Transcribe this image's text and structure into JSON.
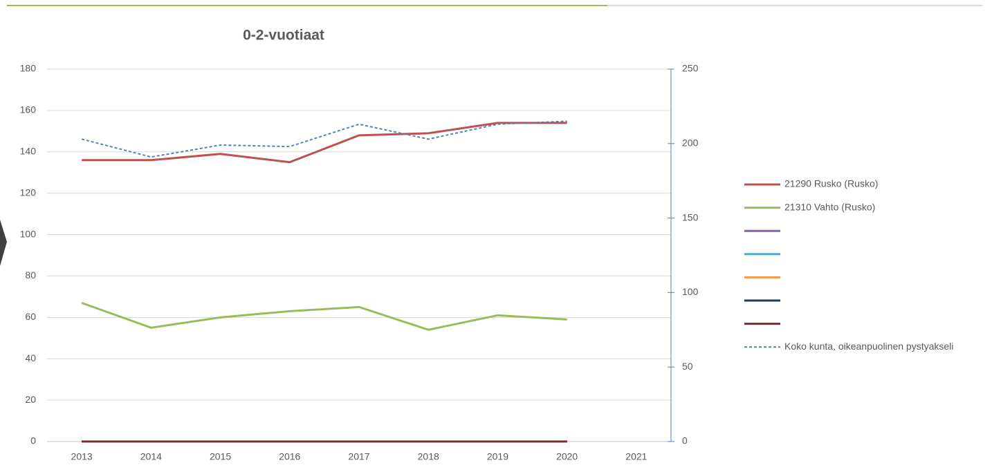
{
  "chart_data": {
    "type": "line",
    "title": "0-2-vuotiaat",
    "categories": [
      "2013",
      "2014",
      "2015",
      "2016",
      "2017",
      "2018",
      "2019",
      "2020",
      "2021"
    ],
    "ylim": [
      0,
      180
    ],
    "yticks": [
      0,
      20,
      40,
      60,
      80,
      100,
      120,
      140,
      160,
      180
    ],
    "y2lim": [
      0,
      250
    ],
    "y2ticks": [
      0,
      50,
      100,
      150,
      200,
      250
    ],
    "grid": true,
    "legend": "right",
    "series": [
      {
        "name": "21290  Rusko (Rusko)",
        "color": "#c0504d",
        "values": [
          136,
          136,
          139,
          135,
          148,
          149,
          154,
          154,
          null
        ]
      },
      {
        "name": "21310  Vahto (Rusko)",
        "color": "#9bbb59",
        "values": [
          67,
          55,
          60,
          63,
          65,
          54,
          61,
          59,
          null
        ]
      },
      {
        "name": null,
        "color": "#8064a2",
        "values": [
          0,
          0,
          0,
          0,
          0,
          0,
          0,
          0,
          null
        ]
      },
      {
        "name": null,
        "color": "#4bacc6",
        "values": [
          0,
          0,
          0,
          0,
          0,
          0,
          0,
          0,
          null
        ]
      },
      {
        "name": null,
        "color": "#f79646",
        "values": [
          0,
          0,
          0,
          0,
          0,
          0,
          0,
          0,
          null
        ]
      },
      {
        "name": null,
        "color": "#1f3864",
        "values": [
          0,
          0,
          0,
          0,
          0,
          0,
          0,
          0,
          null
        ]
      },
      {
        "name": null,
        "color": "#7b2c2c",
        "values": [
          0,
          0,
          0,
          0,
          0,
          0,
          0,
          0,
          null
        ]
      },
      {
        "name": "Koko kunta, oikeanpuolinen pystyakseli",
        "color": "#4f81bd",
        "dashed": true,
        "axis": "y2",
        "values": [
          203,
          191,
          199,
          198,
          213,
          203,
          213,
          215,
          null
        ]
      }
    ]
  }
}
